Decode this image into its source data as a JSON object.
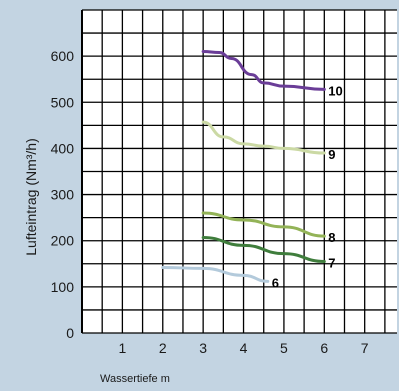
{
  "chart_data": {
    "type": "line",
    "title": "",
    "xlabel": "Wassertiefe m",
    "ylabel": "Lufteintrag (Nm³/h)",
    "xlim": [
      0,
      7.8
    ],
    "ylim": [
      0,
      700
    ],
    "x_ticks": [
      1,
      2,
      3,
      4,
      5,
      6,
      7
    ],
    "y_ticks": [
      0,
      100,
      200,
      300,
      400,
      500,
      600
    ],
    "grid": true,
    "legend": "inline labels at line ends",
    "series": [
      {
        "name": "10",
        "color": "#6a3d97",
        "points": [
          [
            3.0,
            610
          ],
          [
            3.4,
            608
          ],
          [
            3.7,
            595
          ],
          [
            4.2,
            560
          ],
          [
            4.5,
            542
          ],
          [
            5.0,
            535
          ],
          [
            6.0,
            528
          ]
        ]
      },
      {
        "name": "9",
        "color": "#cbd9a4",
        "points": [
          [
            3.0,
            457
          ],
          [
            3.5,
            425
          ],
          [
            4.0,
            410
          ],
          [
            4.5,
            405
          ],
          [
            5.0,
            400
          ],
          [
            6.0,
            390
          ]
        ]
      },
      {
        "name": "8",
        "color": "#93b357",
        "points": [
          [
            3.0,
            260
          ],
          [
            4.0,
            245
          ],
          [
            5.0,
            230
          ],
          [
            6.0,
            210
          ]
        ]
      },
      {
        "name": "7",
        "color": "#3f7d3c",
        "points": [
          [
            3.0,
            207
          ],
          [
            4.0,
            190
          ],
          [
            5.0,
            172
          ],
          [
            6.0,
            155
          ]
        ]
      },
      {
        "name": "6",
        "color": "#b3cadb",
        "points": [
          [
            2.0,
            142
          ],
          [
            3.0,
            140
          ],
          [
            4.0,
            125
          ],
          [
            4.6,
            112
          ]
        ]
      }
    ]
  }
}
